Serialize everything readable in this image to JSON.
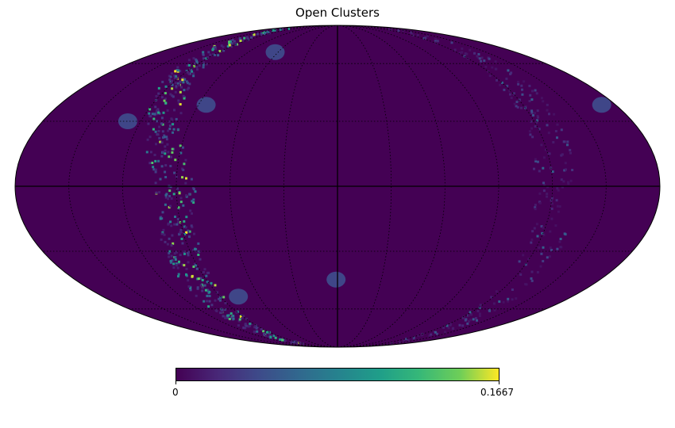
{
  "title": "Open Clusters",
  "colorbar": {
    "min_label": "0",
    "max_label": "0.1667",
    "min": 0,
    "max": 0.1667,
    "colormap": "viridis"
  },
  "colors": {
    "background": "#440154",
    "low_patch": "#3b528b",
    "mid": "#21918c",
    "high": "#fde725",
    "grid": "#000000"
  },
  "chart_data": {
    "type": "heatmap",
    "projection": "mollweide",
    "title": "Open Clusters",
    "value_range": [
      0,
      0.1667
    ],
    "grid": true,
    "features": [
      {
        "name": "galactic plane band (east)",
        "shape": "arc",
        "values_typical": [
          0.02,
          0.08
        ]
      },
      {
        "name": "galactic plane band (west)",
        "shape": "arc",
        "values_typical": [
          0.01,
          0.04
        ]
      },
      {
        "name": "patch",
        "lon_deg": 63,
        "lat_deg": 67,
        "value": 0.04
      },
      {
        "name": "patch",
        "lon_deg": 85,
        "lat_deg": 38,
        "value": 0.04
      },
      {
        "name": "patch",
        "lon_deg": 128,
        "lat_deg": 30,
        "value": 0.04
      },
      {
        "name": "patch",
        "lon_deg": 76,
        "lat_deg": -53,
        "value": 0.04
      },
      {
        "name": "patch",
        "lon_deg": 1,
        "lat_deg": -44,
        "value": 0.04
      },
      {
        "name": "patch",
        "lon_deg": -171,
        "lat_deg": 38,
        "value": 0.04
      }
    ]
  }
}
